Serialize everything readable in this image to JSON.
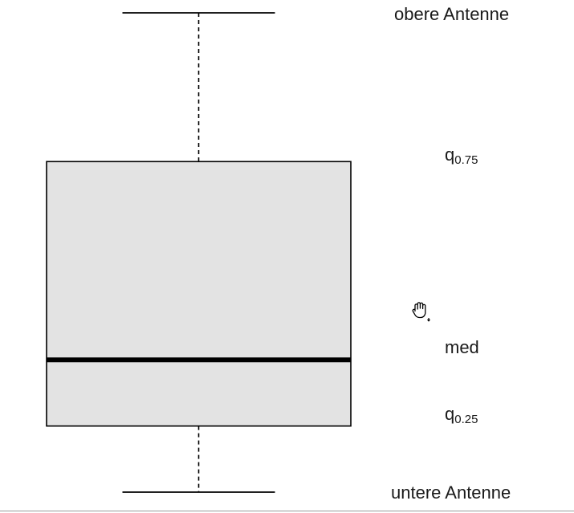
{
  "chart_data": {
    "type": "boxplot",
    "orientation": "vertical",
    "box": {
      "lower_whisker": 0,
      "q25": 1,
      "median": 2,
      "q75": 5,
      "upper_whisker": 7.25
    },
    "whisker_style": "dashed",
    "box_fill": "#e3e3e3",
    "stroke_color": "#000000",
    "labels": {
      "upper_whisker": "obere Antenne",
      "q75_base": "q",
      "q75_sub": "0.75",
      "median": "med",
      "q25_base": "q",
      "q25_sub": "0.25",
      "lower_whisker": "untere Antenne"
    },
    "ylim": [
      0,
      7.25
    ],
    "grid": false
  },
  "cursor": {
    "icon": "grab-hand-cursor-icon"
  }
}
